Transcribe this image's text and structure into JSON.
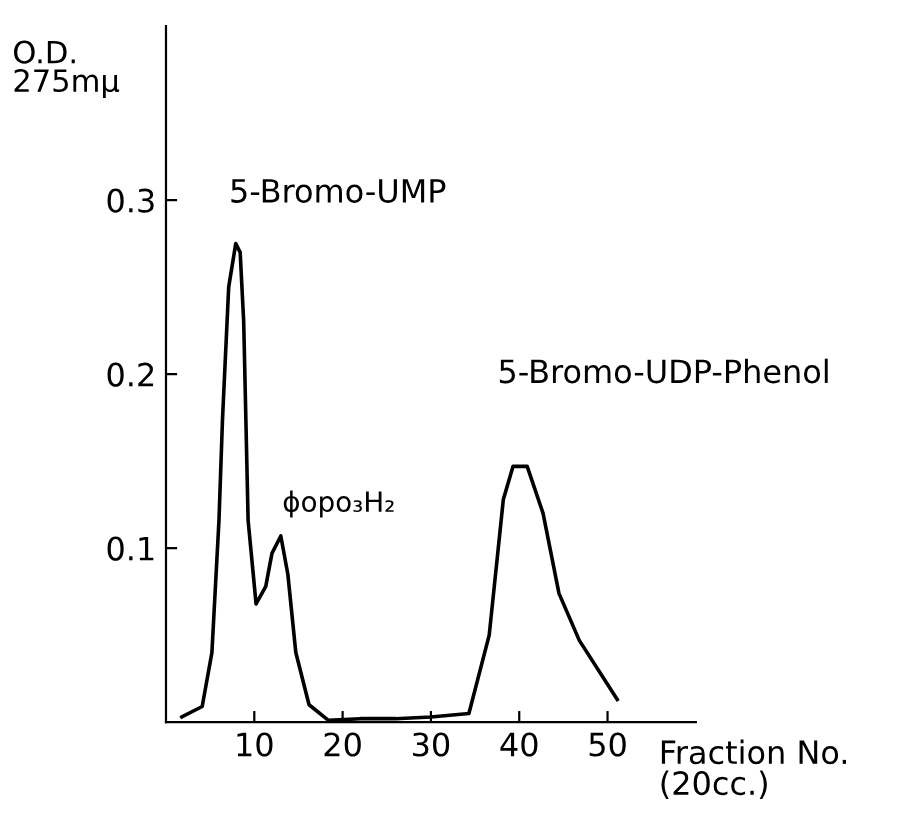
{
  "chart_data": {
    "type": "line",
    "ylabel": "O.D.\n275mμ",
    "xlabel": "Fraction No.\n(20cc.)",
    "series": [
      {
        "color": "#000000",
        "x": [
          1.8,
          4.1,
          5.2,
          6,
          6.4,
          7.1,
          7.9,
          8.4,
          8.8,
          9.3,
          10.2,
          11.3,
          12,
          13,
          13.8,
          14.7,
          16.2,
          18.4,
          22,
          26,
          30,
          34.3,
          36.6,
          38.2,
          39.3,
          40.9,
          42.7,
          44.5,
          46.8,
          51.1
        ],
        "values": [
          0.003,
          0.009,
          0.04,
          0.116,
          0.174,
          0.25,
          0.275,
          0.27,
          0.23,
          0.116,
          0.068,
          0.078,
          0.097,
          0.107,
          0.085,
          0.04,
          0.01,
          0.001,
          0.002,
          0.002,
          0.003,
          0.005,
          0.05,
          0.128,
          0.147,
          0.147,
          0.12,
          0.074,
          0.047,
          0.013
        ]
      }
    ],
    "xlim": [
      0,
      60
    ],
    "xticks": [
      10,
      20,
      30,
      40,
      50
    ],
    "ylim": [
      0,
      0.4
    ],
    "yticks": [
      0.1,
      0.2,
      0.3
    ],
    "grid": false,
    "marker": "none",
    "line_style": "solid",
    "annotations": [
      {
        "text": "5-Bromo-UMP",
        "x": 7.9,
        "y": 0.275
      },
      {
        "text": "ϕopo₃H₂",
        "x": 13,
        "y": 0.107
      },
      "5-Bromo-UDP-Phenol"
    ]
  }
}
